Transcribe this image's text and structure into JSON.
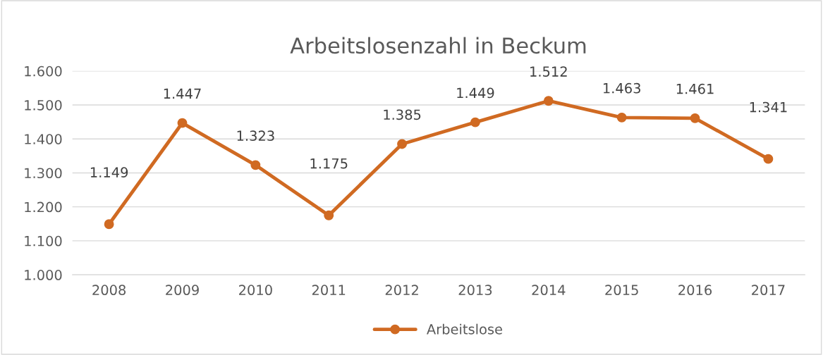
{
  "chart_data": {
    "type": "line",
    "title": "Arbeitslosenzahl in Beckum",
    "categories": [
      "2008",
      "2009",
      "2010",
      "2011",
      "2012",
      "2013",
      "2014",
      "2015",
      "2016",
      "2017"
    ],
    "series": [
      {
        "name": "Arbeitslose",
        "color": "#d06a22",
        "values": [
          1149,
          1447,
          1323,
          1175,
          1385,
          1449,
          1512,
          1463,
          1461,
          1341
        ],
        "value_labels": [
          "1.149",
          "1.447",
          "1.323",
          "1.175",
          "1.385",
          "1.449",
          "1.512",
          "1.463",
          "1.461",
          "1.341"
        ]
      }
    ],
    "ylim": [
      1000,
      1600
    ],
    "yticks": [
      {
        "value": 1000,
        "label": "1.000"
      },
      {
        "value": 1100,
        "label": "1.100"
      },
      {
        "value": 1200,
        "label": "1.200"
      },
      {
        "value": 1300,
        "label": "1.300"
      },
      {
        "value": 1400,
        "label": "1.400"
      },
      {
        "value": 1500,
        "label": "1.500"
      },
      {
        "value": 1600,
        "label": "1.600"
      }
    ],
    "grid": "y",
    "legend": "bottom",
    "marker": "circle",
    "line_style": "solid"
  }
}
